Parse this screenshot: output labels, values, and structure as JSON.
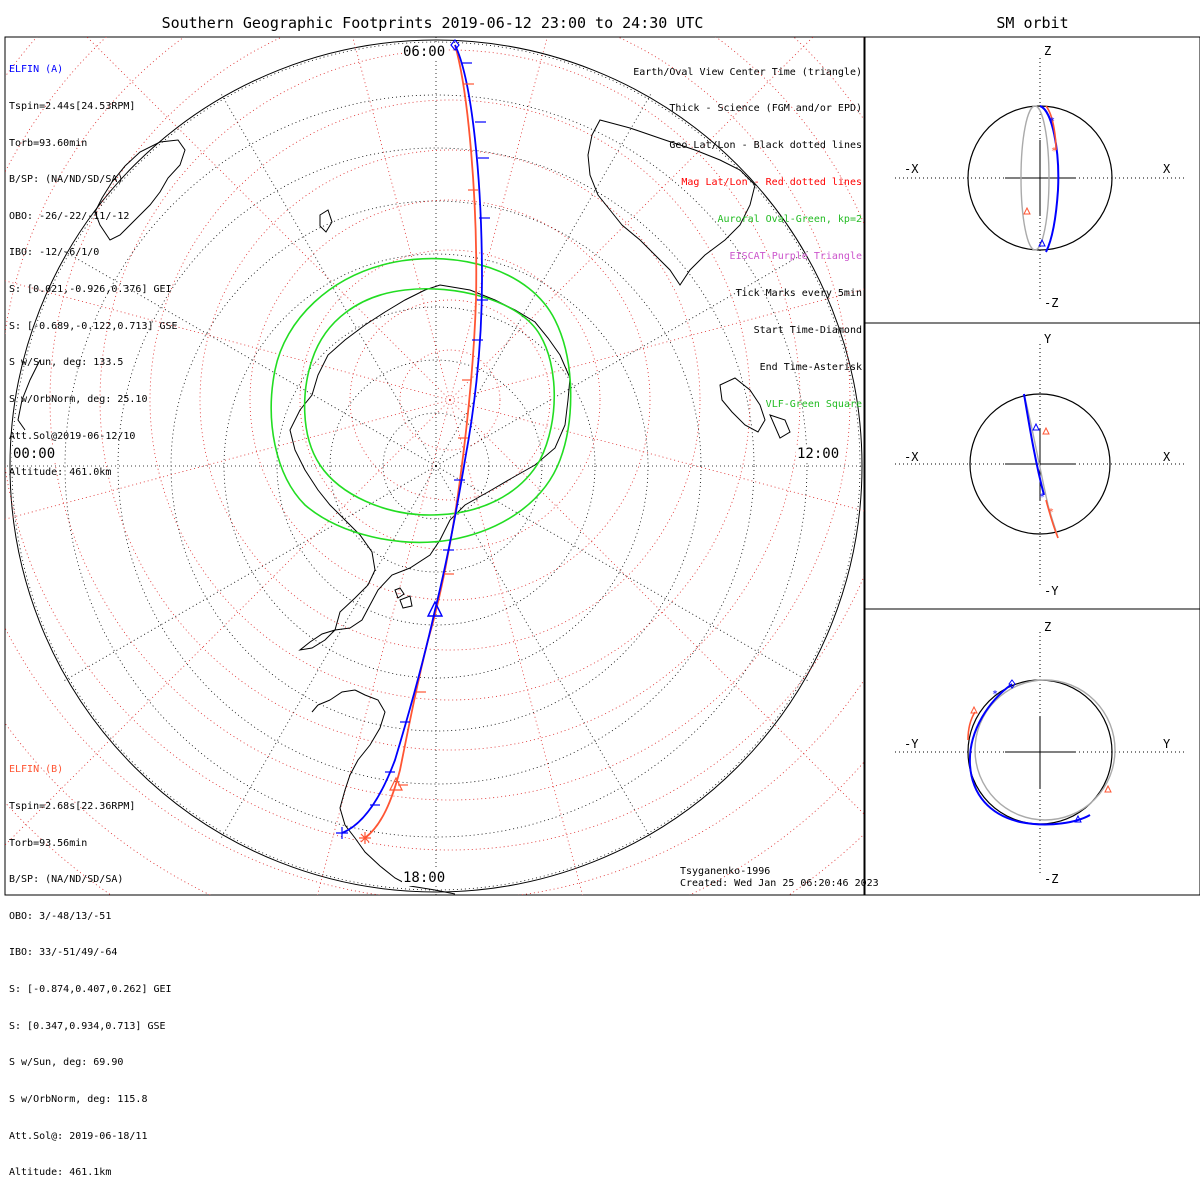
{
  "title": "Southern Geographic Footprints 2019-06-12 23:00 to 24:30 UTC",
  "sm_title": "SM orbit",
  "colors": {
    "elfin_a": "#0000ff",
    "elfin_b": "#ff5533",
    "oval": "#22dd22",
    "geo_grid": "#000000",
    "mag_grid": "#dd2222",
    "eiscat": "#cc55cc",
    "orbit_gray": "#aaaaaa"
  },
  "map": {
    "hour_labels": {
      "top": "06:00",
      "left": "00:00",
      "right": "12:00",
      "bottom": "18:00"
    }
  },
  "legend": [
    {
      "text": "Earth/Oval View Center Time (triangle)",
      "color": "#000000"
    },
    {
      "text": "Thick - Science (FGM and/or EPD)",
      "color": "#000000"
    },
    {
      "text": "Geo Lat/Lon - Black dotted lines",
      "color": "#000000"
    },
    {
      "text": "Mag Lat/Lon - Red dotted lines",
      "color": "#ff0000"
    },
    {
      "text": "Auroral Oval-Green, kp=2",
      "color": "#22bb22"
    },
    {
      "text": "EISCAT-Purple Triangle",
      "color": "#cc55cc"
    },
    {
      "text": "Tick Marks every 5min",
      "color": "#000000"
    },
    {
      "text": "Start Time-Diamond",
      "color": "#000000"
    },
    {
      "text": "End Time-Asterisk",
      "color": "#000000"
    },
    {
      "text": "VLF-Green Square",
      "color": "#22bb22"
    }
  ],
  "elfin_a": {
    "name": "ELFIN (A)",
    "lines": [
      "Tspin=2.44s[24.53RPM]",
      "Torb=93.60min",
      "B/SP: (NA/ND/SD/SA)",
      "OBO: -26/-22/-11/-12",
      "IBO: -12/-6/1/0",
      "S: [0.021,-0.926,0.376] GEI",
      "S: [-0.689,-0.122,0.713] GSE",
      "S w/Sun, deg: 133.5",
      "S w/OrbNorm, deg: 25.10",
      "Att.Sol@2019-06-12/10",
      "Altitude: 461.0km"
    ]
  },
  "elfin_b": {
    "name": "ELFIN (B)",
    "lines": [
      "Tspin=2.68s[22.36RPM]",
      "Torb=93.56min",
      "B/SP: (NA/ND/SD/SA)",
      "OBO: 3/-48/13/-51",
      "IBO: 33/-51/49/-64",
      "S: [-0.874,0.407,0.262] GEI",
      "S: [0.347,0.934,0.713] GSE",
      "S w/Sun, deg: 69.90",
      "S w/OrbNorm, deg: 115.8",
      "Att.Sol@: 2019-06-18/11",
      "Altitude: 461.1km"
    ]
  },
  "model": "Tsyganenko-1996",
  "created": "Created: Wed Jan 25 06:20:46 2023",
  "sm_panels": [
    {
      "top": "Z",
      "bottom": "-Z",
      "left": "-X",
      "right": "X"
    },
    {
      "top": "Y",
      "bottom": "-Y",
      "left": "-X",
      "right": "X"
    },
    {
      "top": "Z",
      "bottom": "-Z",
      "left": "-Y",
      "right": "Y"
    }
  ]
}
